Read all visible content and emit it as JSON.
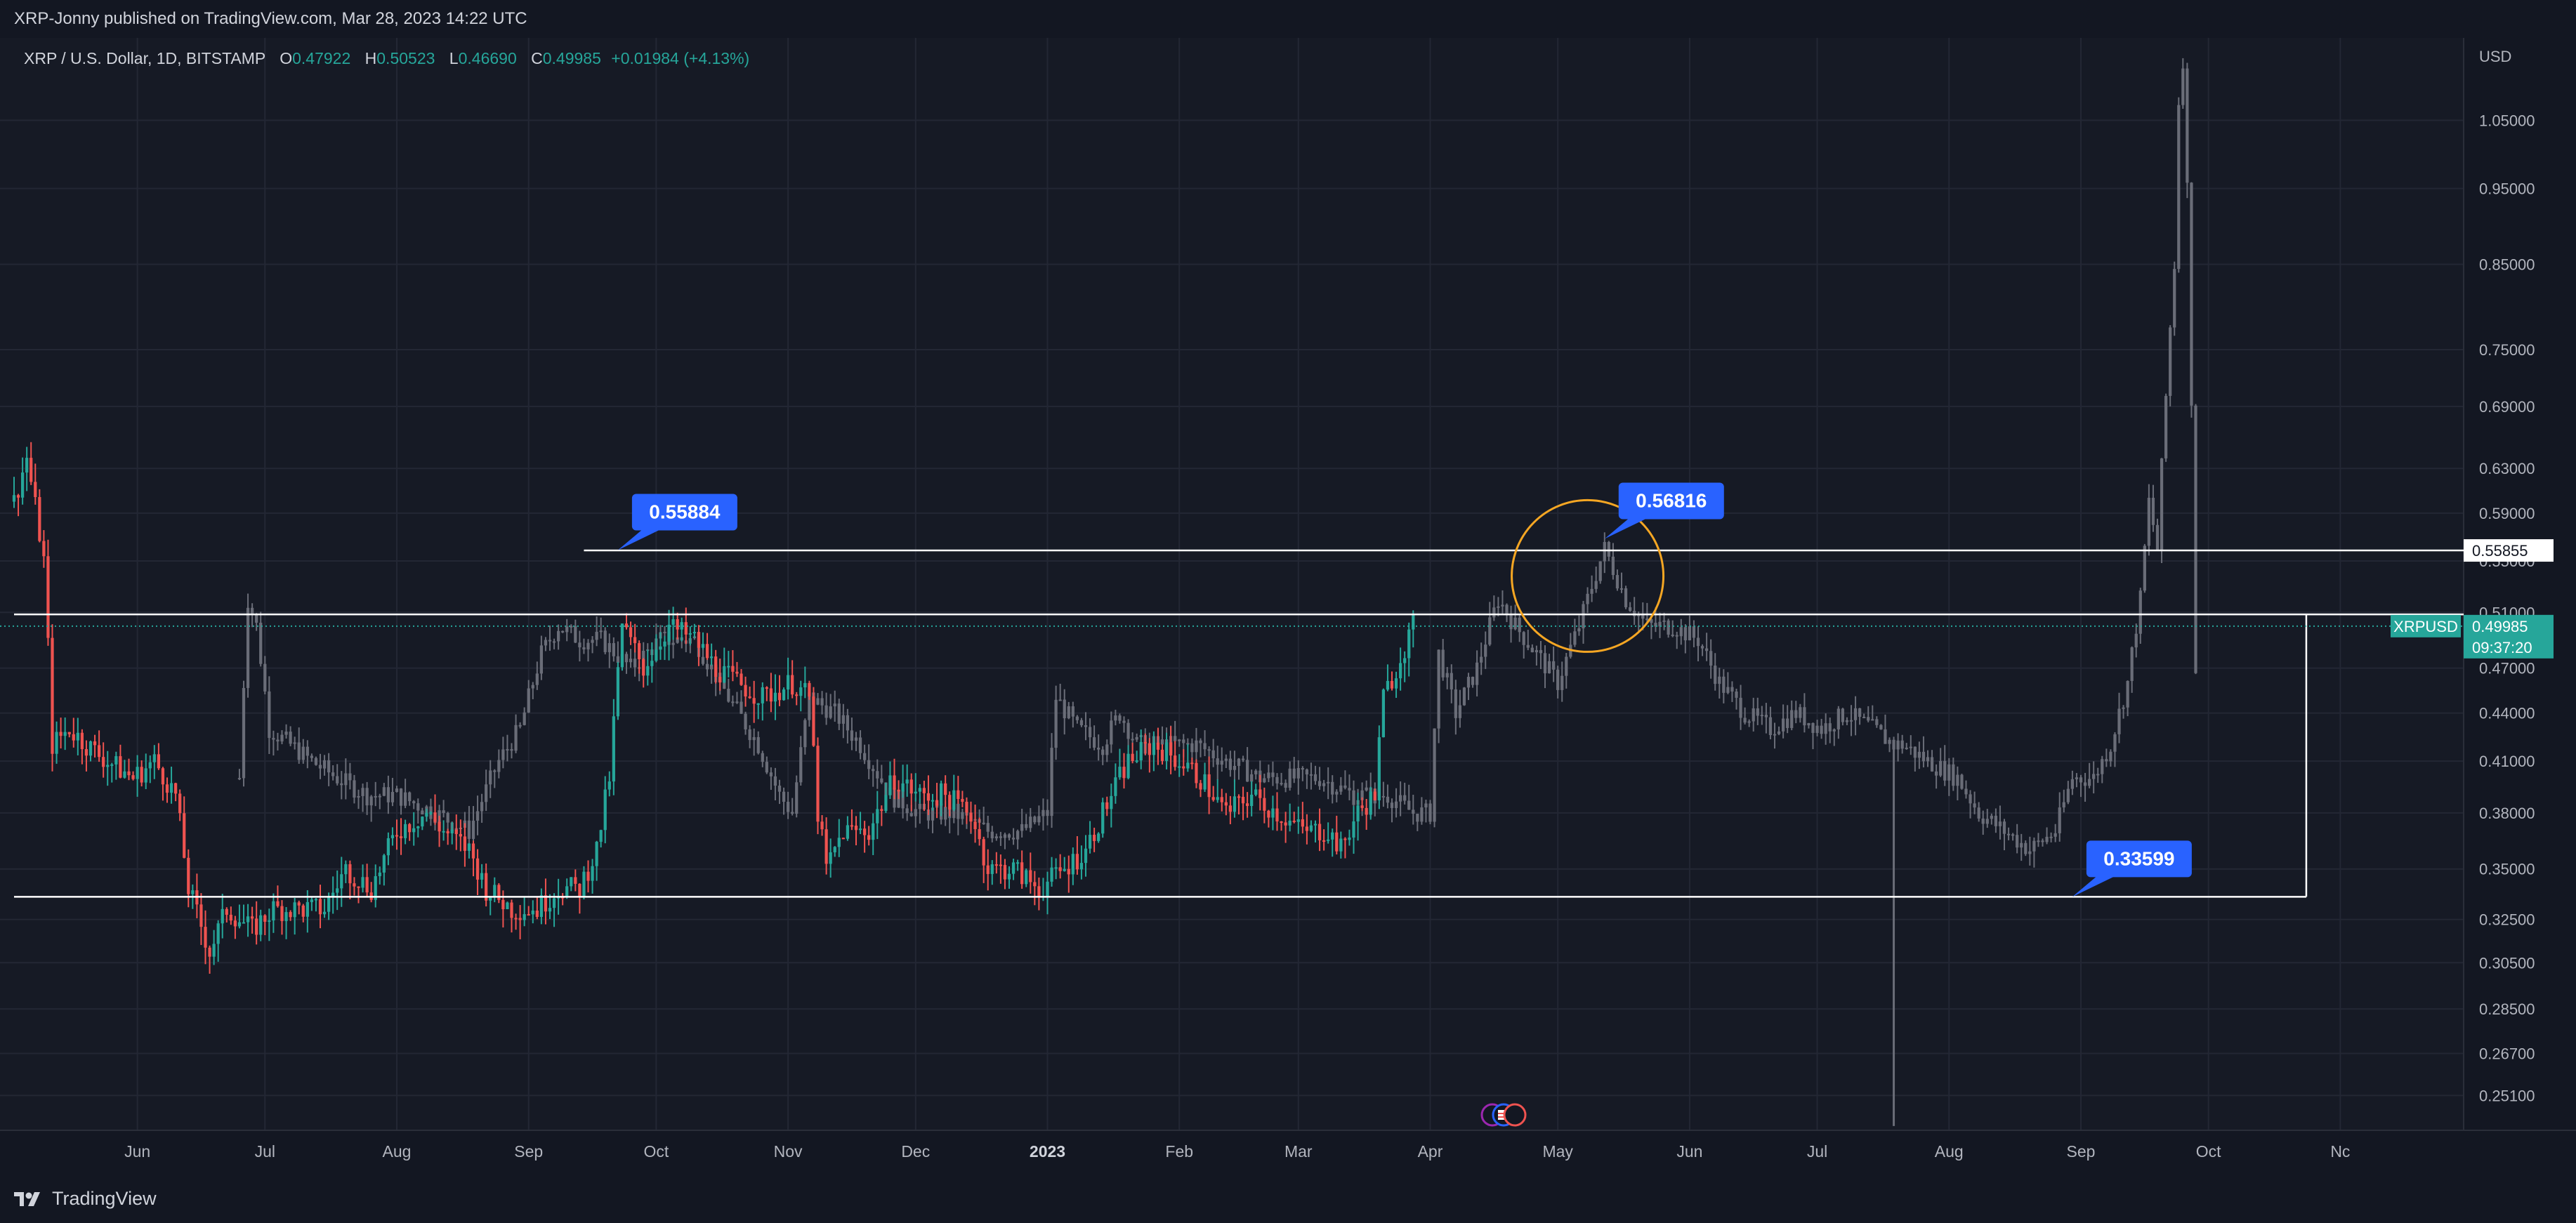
{
  "header": {
    "publish_line": "XRP-Jonny published on TradingView.com, Mar 28, 2023 14:22 UTC"
  },
  "footer": {
    "brand": "TradingView"
  },
  "legend": {
    "symbol": "XRP / U.S. Dollar, 1D, BITSTAMP",
    "o_key": "O",
    "o": "0.47922",
    "h_key": "H",
    "h": "0.50523",
    "l_key": "L",
    "l": "0.46690",
    "c_key": "C",
    "c": "0.49985",
    "change": "+0.01984 (+4.13%)"
  },
  "chart_data": {
    "type": "candlestick",
    "symbol": "XRPUSD",
    "interval": "1D",
    "exchange": "BITSTAMP",
    "currency_label": "USD",
    "y_scale": "log",
    "ylim": [
      0.2385,
      1.185
    ],
    "y_ticks": [
      "1.05000",
      "0.95000",
      "0.85000",
      "0.75000",
      "0.69000",
      "0.63000",
      "0.59000",
      "0.55000",
      "0.51000",
      "0.47000",
      "0.44000",
      "0.41000",
      "0.38000",
      "0.35000",
      "0.32500",
      "0.30500",
      "0.28500",
      "0.26700",
      "0.25100"
    ],
    "x_ticks": [
      "Jun",
      "Jul",
      "Aug",
      "Sep",
      "Oct",
      "Nov",
      "Dec",
      "2023",
      "Feb",
      "Mar",
      "Apr",
      "May",
      "Jun",
      "Jul",
      "Aug",
      "Sep",
      "Oct",
      "Nc"
    ],
    "x_tick_dates": [
      "2022-06-01",
      "2022-07-01",
      "2022-08-01",
      "2022-09-01",
      "2022-10-01",
      "2022-11-01",
      "2022-12-01",
      "2023-01-01",
      "2023-02-01",
      "2023-03-01",
      "2023-04-01",
      "2023-05-01",
      "2023-06-01",
      "2023-07-01",
      "2023-08-01",
      "2023-09-01",
      "2023-10-01",
      "2023-11-01"
    ],
    "xlim": [
      "2022-05-03",
      "2023-11-30"
    ],
    "current_price": {
      "label": "XRPUSD",
      "price": "0.49985",
      "countdown": "09:37:20"
    },
    "price_line_label": "0.55855",
    "levels": [
      {
        "price": 0.55855,
        "from": "2022-09-14",
        "to": "2023-11-30"
      },
      {
        "price": 0.5085,
        "from": "2022-05-03",
        "to": "2023-11-30"
      },
      {
        "price": 0.33599,
        "from": "2022-05-03",
        "to": "2023-10-24"
      }
    ],
    "callouts": [
      {
        "label": "0.55884",
        "date": "2022-09-22",
        "price": 0.55884
      },
      {
        "label": "0.56816",
        "date": "2023-05-12",
        "price": 0.56816
      },
      {
        "label": "0.33599",
        "date": "2023-08-30",
        "price": 0.33599
      }
    ],
    "highlight_circle": {
      "date": "2023-05-08",
      "price": 0.538
    },
    "series": [
      {
        "role": "actual-price",
        "colors": {
          "up": "#26a69a",
          "down": "#ef5350"
        },
        "points": [
          [
            "2022-05-03",
            0.6
          ],
          [
            "2022-05-06",
            0.64
          ],
          [
            "2022-05-10",
            0.55
          ],
          [
            "2022-05-12",
            0.42
          ],
          [
            "2022-05-16",
            0.43
          ],
          [
            "2022-05-20",
            0.42
          ],
          [
            "2022-05-25",
            0.41
          ],
          [
            "2022-05-31",
            0.4
          ],
          [
            "2022-06-05",
            0.41
          ],
          [
            "2022-06-10",
            0.39
          ],
          [
            "2022-06-13",
            0.34
          ],
          [
            "2022-06-18",
            0.31
          ],
          [
            "2022-06-22",
            0.33
          ],
          [
            "2022-06-28",
            0.32
          ],
          [
            "2022-07-03",
            0.33
          ],
          [
            "2022-07-10",
            0.33
          ],
          [
            "2022-07-15",
            0.33
          ],
          [
            "2022-07-20",
            0.35
          ],
          [
            "2022-07-26",
            0.34
          ],
          [
            "2022-08-01",
            0.37
          ],
          [
            "2022-08-08",
            0.38
          ],
          [
            "2022-08-12",
            0.37
          ],
          [
            "2022-08-18",
            0.36
          ],
          [
            "2022-08-22",
            0.34
          ],
          [
            "2022-08-28",
            0.33
          ],
          [
            "2022-09-03",
            0.33
          ],
          [
            "2022-09-08",
            0.34
          ],
          [
            "2022-09-13",
            0.34
          ],
          [
            "2022-09-17",
            0.36
          ],
          [
            "2022-09-20",
            0.4
          ],
          [
            "2022-09-23",
            0.5
          ],
          [
            "2022-09-28",
            0.47
          ],
          [
            "2022-10-04",
            0.5
          ],
          [
            "2022-10-10",
            0.49
          ],
          [
            "2022-10-15",
            0.47
          ],
          [
            "2022-10-20",
            0.46
          ],
          [
            "2022-10-26",
            0.45
          ],
          [
            "2022-11-02",
            0.46
          ],
          [
            "2022-11-06",
            0.45
          ],
          [
            "2022-11-08",
            0.38
          ],
          [
            "2022-11-10",
            0.35
          ],
          [
            "2022-11-14",
            0.37
          ],
          [
            "2022-11-20",
            0.37
          ],
          [
            "2022-11-26",
            0.4
          ],
          [
            "2022-12-02",
            0.39
          ],
          [
            "2022-12-08",
            0.39
          ],
          [
            "2022-12-14",
            0.38
          ],
          [
            "2022-12-18",
            0.35
          ],
          [
            "2022-12-24",
            0.35
          ],
          [
            "2022-12-30",
            0.34
          ],
          [
            "2023-01-05",
            0.35
          ],
          [
            "2023-01-10",
            0.36
          ],
          [
            "2023-01-14",
            0.38
          ],
          [
            "2023-01-20",
            0.41
          ],
          [
            "2023-01-26",
            0.42
          ],
          [
            "2023-02-01",
            0.41
          ],
          [
            "2023-02-06",
            0.4
          ],
          [
            "2023-02-12",
            0.38
          ],
          [
            "2023-02-18",
            0.39
          ],
          [
            "2023-02-24",
            0.38
          ],
          [
            "2023-03-02",
            0.37
          ],
          [
            "2023-03-08",
            0.37
          ],
          [
            "2023-03-11",
            0.36
          ],
          [
            "2023-03-15",
            0.38
          ],
          [
            "2023-03-19",
            0.39
          ],
          [
            "2023-03-21",
            0.45
          ],
          [
            "2023-03-24",
            0.47
          ],
          [
            "2023-03-28",
            0.4999
          ]
        ]
      },
      {
        "role": "overlay-fractal",
        "color": "#6a6d78",
        "points": [
          [
            "2022-06-25",
            0.4
          ],
          [
            "2022-06-27",
            0.52
          ],
          [
            "2022-06-29",
            0.5
          ],
          [
            "2022-07-02",
            0.43
          ],
          [
            "2022-07-07",
            0.42
          ],
          [
            "2022-07-12",
            0.41
          ],
          [
            "2022-07-18",
            0.4
          ],
          [
            "2022-07-25",
            0.39
          ],
          [
            "2022-08-01",
            0.39
          ],
          [
            "2022-08-10",
            0.38
          ],
          [
            "2022-08-18",
            0.37
          ],
          [
            "2022-08-25",
            0.41
          ],
          [
            "2022-08-30",
            0.43
          ],
          [
            "2022-09-04",
            0.48
          ],
          [
            "2022-09-08",
            0.5
          ],
          [
            "2022-09-13",
            0.49
          ],
          [
            "2022-09-18",
            0.49
          ],
          [
            "2022-09-25",
            0.47
          ],
          [
            "2022-10-02",
            0.49
          ],
          [
            "2022-10-10",
            0.49
          ],
          [
            "2022-10-18",
            0.45
          ],
          [
            "2022-10-25",
            0.42
          ],
          [
            "2022-10-30",
            0.39
          ],
          [
            "2022-11-02",
            0.38
          ],
          [
            "2022-11-06",
            0.45
          ],
          [
            "2022-11-12",
            0.44
          ],
          [
            "2022-11-18",
            0.42
          ],
          [
            "2022-11-25",
            0.39
          ],
          [
            "2022-12-02",
            0.38
          ],
          [
            "2022-12-10",
            0.38
          ],
          [
            "2022-12-18",
            0.37
          ],
          [
            "2022-12-26",
            0.37
          ],
          [
            "2023-01-01",
            0.38
          ],
          [
            "2023-01-03",
            0.45
          ],
          [
            "2023-01-08",
            0.43
          ],
          [
            "2023-01-14",
            0.42
          ],
          [
            "2023-01-18",
            0.44
          ],
          [
            "2023-01-22",
            0.42
          ],
          [
            "2023-01-28",
            0.42
          ],
          [
            "2023-02-05",
            0.42
          ],
          [
            "2023-02-12",
            0.41
          ],
          [
            "2023-02-20",
            0.4
          ],
          [
            "2023-02-28",
            0.4
          ],
          [
            "2023-03-06",
            0.4
          ],
          [
            "2023-03-14",
            0.39
          ],
          [
            "2023-03-22",
            0.39
          ],
          [
            "2023-03-28",
            0.38
          ],
          [
            "2023-04-01",
            0.38
          ],
          [
            "2023-04-03",
            0.48
          ],
          [
            "2023-04-07",
            0.44
          ],
          [
            "2023-04-12",
            0.47
          ],
          [
            "2023-04-17",
            0.52
          ],
          [
            "2023-04-21",
            0.5
          ],
          [
            "2023-04-26",
            0.48
          ],
          [
            "2023-05-01",
            0.46
          ],
          [
            "2023-05-06",
            0.5
          ],
          [
            "2023-05-12",
            0.56
          ],
          [
            "2023-05-17",
            0.52
          ],
          [
            "2023-05-22",
            0.5
          ],
          [
            "2023-05-28",
            0.5
          ],
          [
            "2023-06-03",
            0.49
          ],
          [
            "2023-06-08",
            0.46
          ],
          [
            "2023-06-14",
            0.44
          ],
          [
            "2023-06-20",
            0.43
          ],
          [
            "2023-06-26",
            0.44
          ],
          [
            "2023-07-02",
            0.43
          ],
          [
            "2023-07-08",
            0.44
          ],
          [
            "2023-07-14",
            0.43
          ],
          [
            "2023-07-19",
            0.42
          ],
          [
            "2023-07-21",
            0.42
          ],
          [
            "2023-07-27",
            0.41
          ],
          [
            "2023-08-03",
            0.4
          ],
          [
            "2023-08-08",
            0.38
          ],
          [
            "2023-08-14",
            0.37
          ],
          [
            "2023-08-20",
            0.36
          ],
          [
            "2023-08-26",
            0.37
          ],
          [
            "2023-08-30",
            0.4
          ],
          [
            "2023-09-04",
            0.4
          ],
          [
            "2023-09-08",
            0.42
          ],
          [
            "2023-09-12",
            0.46
          ],
          [
            "2023-09-15",
            0.52
          ],
          [
            "2023-09-17",
            0.6
          ],
          [
            "2023-09-19",
            0.56
          ],
          [
            "2023-09-21",
            0.7
          ],
          [
            "2023-09-23",
            0.85
          ],
          [
            "2023-09-24",
            1.08
          ],
          [
            "2023-09-25",
            1.15
          ],
          [
            "2023-09-26",
            0.95
          ],
          [
            "2023-09-27",
            0.7
          ],
          [
            "2023-09-28",
            0.47
          ]
        ],
        "spikes": [
          [
            "2023-07-19",
            0.24
          ]
        ]
      }
    ]
  },
  "icons": {
    "events": [
      "earnings-event-icon",
      "us-flag-event-icon",
      "dividend-event-icon"
    ]
  }
}
